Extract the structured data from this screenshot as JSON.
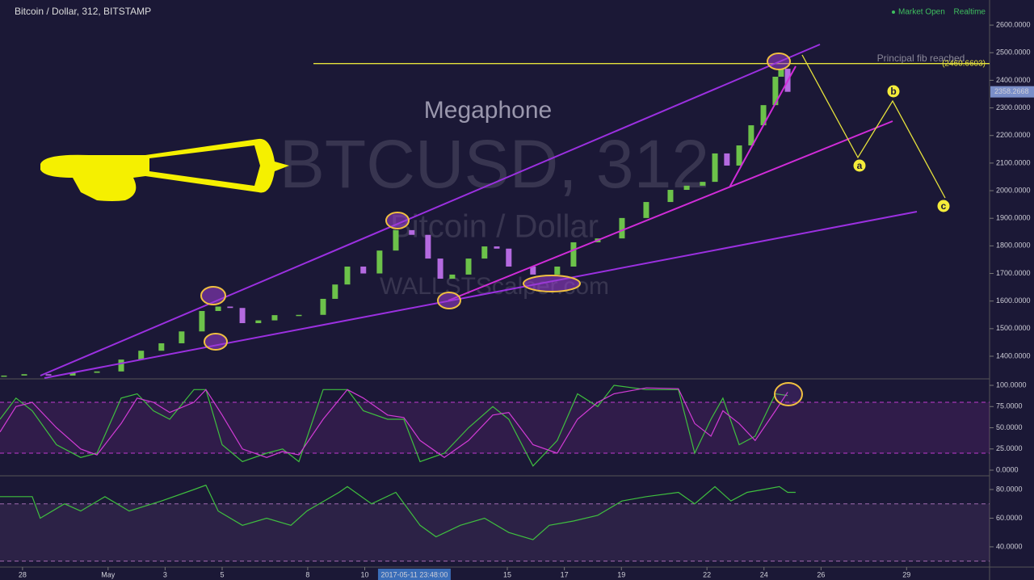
{
  "header": {
    "title": "Bitcoin / Dollar, 312, BITSTAMP",
    "status": "Market Open",
    "mode": "Realtime"
  },
  "watermark": {
    "symbol": "BTCUSD, 312",
    "name": "Bitcoin / Dollar",
    "site": "WALLSTScalper.com"
  },
  "annotations": {
    "pattern": "Megaphone",
    "fib_note": "Principal fib reached",
    "waves": [
      "a",
      "b",
      "c"
    ]
  },
  "chart_data": [
    {
      "type": "candlestick",
      "up_color": "#6cc24a",
      "down_color": "#b46ae0",
      "x": [
        -0.65,
        0.06,
        0.91,
        1.76,
        2.61,
        3.46,
        4.16,
        4.87,
        5.58,
        6.29,
        6.86,
        7.28,
        7.71,
        8.27,
        8.84,
        9.69,
        10.54,
        10.96,
        11.39,
        11.95,
        12.52,
        13.09,
        13.65,
        14.22,
        14.65,
        15.07,
        15.64,
        16.2,
        16.63,
        17.05,
        17.9,
        18.75,
        19.32,
        20.17,
        21.02,
        21.87,
        22.72,
        23.29,
        23.85,
        24.28,
        24.7,
        25.13,
        25.55,
        25.98,
        26.4,
        26.6,
        26.83
      ],
      "values": [
        1330,
        1335,
        1330,
        1340,
        1345,
        1388,
        1420,
        1447,
        1490,
        1564,
        1580,
        1575,
        1520,
        1530,
        1549,
        1550,
        1608,
        1660,
        1725,
        1700,
        1783,
        1857,
        1840,
        1754,
        1681,
        1696,
        1754,
        1798,
        1790,
        1725,
        1696,
        1725,
        1813,
        1827,
        1901,
        1959,
        2003,
        2018,
        2032,
        2135,
        2091,
        2164,
        2237,
        2310,
        2413,
        2442,
        2358.2668
      ],
      "value_labels": {
        "last": "2358.2668"
      },
      "hline": {
        "value": 2460.6603,
        "label": "(2460.6603)",
        "color": "#e6e23c"
      },
      "ylim": [
        1321,
        2691
      ],
      "yticks": [
        {
          "value": 1400,
          "label": "1400.0000"
        },
        {
          "value": 1500,
          "label": "1500.0000"
        },
        {
          "value": 1600,
          "label": "1600.0000"
        },
        {
          "value": 1700,
          "label": "1700.0000"
        },
        {
          "value": 1800,
          "label": "1800.0000"
        },
        {
          "value": 1900,
          "label": "1900.0000"
        },
        {
          "value": 2000,
          "label": "2000.0000"
        },
        {
          "value": 2100,
          "label": "2100.0000"
        },
        {
          "value": 2200,
          "label": "2200.0000"
        },
        {
          "value": 2300,
          "label": "2300.0000"
        },
        {
          "value": 2400,
          "label": "2400.0000"
        },
        {
          "value": 2500,
          "label": "2500.0000"
        },
        {
          "value": 2600,
          "label": "2600.0000"
        }
      ]
    },
    {
      "type": "line",
      "bands": [
        20,
        80
      ],
      "band_color": "#c03ad0",
      "x": [
        -0.79,
        -0.23,
        0.34,
        1.19,
        2.04,
        2.61,
        3.46,
        4.02,
        4.59,
        5.16,
        6.01,
        6.43,
        7.0,
        7.71,
        8.56,
        9.12,
        9.69,
        10.54,
        11.39,
        11.95,
        12.8,
        13.37,
        13.94,
        14.79,
        15.64,
        16.49,
        17.05,
        17.9,
        18.75,
        19.46,
        20.17,
        20.74,
        21.87,
        23.0,
        23.57,
        24.14,
        24.56,
        25.13,
        25.69,
        26.4,
        26.83
      ],
      "series": [
        {
          "color": "#3fbf3f",
          "values": [
            60,
            85,
            70,
            30,
            15,
            20,
            85,
            90,
            70,
            60,
            95,
            95,
            30,
            10,
            20,
            25,
            10,
            95,
            95,
            70,
            60,
            60,
            10,
            20,
            50,
            75,
            60,
            5,
            35,
            90,
            75,
            100,
            95,
            95,
            20,
            60,
            85,
            30,
            40,
            90,
            88
          ]
        },
        {
          "color": "#d23cd6",
          "values": [
            45,
            75,
            80,
            50,
            25,
            18,
            55,
            85,
            80,
            68,
            80,
            95,
            65,
            25,
            15,
            22,
            18,
            60,
            95,
            85,
            65,
            62,
            35,
            15,
            35,
            65,
            68,
            30,
            20,
            60,
            80,
            90,
            97,
            96,
            55,
            40,
            70,
            55,
            35,
            70,
            92
          ]
        }
      ],
      "ylim": [
        -5.7,
        106.7
      ],
      "yticks": [
        {
          "value": 0,
          "label": "0.0000"
        },
        {
          "value": 25,
          "label": "25.0000"
        },
        {
          "value": 50,
          "label": "50.0000"
        },
        {
          "value": 75,
          "label": "75.0000"
        },
        {
          "value": 100,
          "label": "100.0000"
        }
      ]
    },
    {
      "type": "line",
      "bands": [
        30,
        70
      ],
      "band_color": "#a06ab0",
      "x": [
        -0.79,
        0.34,
        0.62,
        1.47,
        2.04,
        2.89,
        3.74,
        4.87,
        6.01,
        6.43,
        6.86,
        7.71,
        8.56,
        9.41,
        9.97,
        11.1,
        11.39,
        12.24,
        13.09,
        13.94,
        14.5,
        15.35,
        16.2,
        17.05,
        17.9,
        18.47,
        19.32,
        20.17,
        21.02,
        21.87,
        23.0,
        23.57,
        24.28,
        24.84,
        25.41,
        25.98,
        26.54,
        26.83,
        27.11
      ],
      "series": [
        {
          "color": "#3fbf3f",
          "values": [
            75,
            75,
            60,
            70,
            65,
            75,
            65,
            72,
            80,
            83,
            65,
            55,
            60,
            55,
            65,
            78,
            82,
            70,
            78,
            55,
            47,
            55,
            60,
            50,
            45,
            55,
            58,
            62,
            72,
            75,
            78,
            70,
            82,
            72,
            78,
            80,
            82,
            78,
            78
          ]
        }
      ],
      "ylim": [
        27,
        89
      ],
      "yticks": [
        {
          "value": 40,
          "label": "40.0000"
        },
        {
          "value": 60,
          "label": "60.0000"
        },
        {
          "value": 80,
          "label": "80.0000"
        }
      ],
      "xlim": [
        -0.79,
        33.91
      ],
      "xticks": [
        {
          "value": 0,
          "label": "28"
        },
        {
          "value": 3,
          "label": "May"
        },
        {
          "value": 5,
          "label": "3"
        },
        {
          "value": 7,
          "label": "5"
        },
        {
          "value": 10,
          "label": "8"
        },
        {
          "value": 12,
          "label": "10"
        },
        {
          "value": 17,
          "label": "15"
        },
        {
          "value": 19,
          "label": "17"
        },
        {
          "value": 21,
          "label": "19"
        },
        {
          "value": 24,
          "label": "22"
        },
        {
          "value": 26,
          "label": "24"
        },
        {
          "value": 28,
          "label": "26"
        },
        {
          "value": 31,
          "label": "29"
        }
      ],
      "crosshair": {
        "value": 13.74,
        "label": "2017-05-11 23:48:00"
      }
    }
  ]
}
